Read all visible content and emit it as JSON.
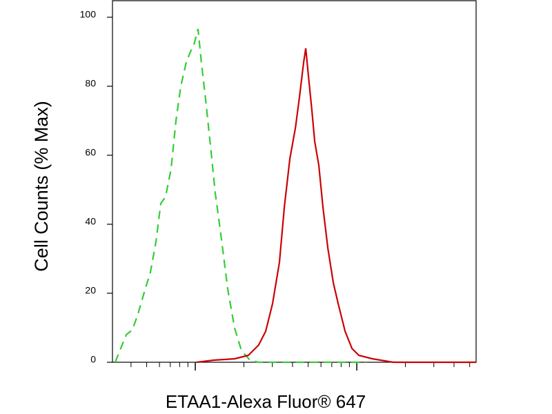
{
  "chart_data": {
    "type": "line",
    "xlabel": "ETAA1-Alexa Fluor® 647",
    "ylabel": "Cell Counts (% Max)",
    "xscale": "log",
    "xlim": [
      0.307,
      54.8
    ],
    "xticks": [
      1,
      10
    ],
    "xminor_ticks": [
      0.4,
      0.5,
      0.6,
      0.7,
      0.8,
      0.9,
      2,
      3,
      4,
      5,
      6,
      7,
      8,
      9,
      20,
      30,
      40,
      50
    ],
    "ylim": [
      0,
      100
    ],
    "yticks": [
      0,
      20,
      40,
      60,
      80,
      100
    ],
    "series": [
      {
        "color": "#33cc33",
        "dash": true,
        "x": [
          0.319,
          0.345,
          0.374,
          0.408,
          0.442,
          0.488,
          0.527,
          0.571,
          0.611,
          0.655,
          0.708,
          0.759,
          0.813,
          0.88,
          0.933,
          0.98,
          1.04,
          1.09,
          1.16,
          1.24,
          1.33,
          1.44,
          1.59,
          1.75,
          1.93,
          2.18,
          2.47,
          11.4
        ],
        "values": [
          0,
          4,
          8,
          9.4,
          14,
          21,
          26,
          35,
          46,
          48,
          56,
          70,
          80,
          87,
          90,
          92,
          96.6,
          87,
          76,
          63,
          49,
          37,
          21,
          10,
          3.4,
          0.6,
          0,
          0
        ]
      },
      {
        "color": "#cc0000",
        "dash": false,
        "x": [
          1.02,
          1.3,
          1.75,
          2.13,
          2.47,
          2.73,
          3.01,
          3.32,
          3.56,
          3.85,
          4.17,
          4.42,
          4.69,
          4.83,
          5.02,
          5.27,
          5.49,
          5.82,
          6.17,
          6.62,
          7.16,
          7.67,
          8.46,
          9.34,
          10.3,
          12.5,
          16.8,
          54.8
        ],
        "values": [
          0,
          0.6,
          1,
          2,
          5,
          9,
          17,
          29,
          45,
          59,
          68,
          77,
          87,
          91,
          83,
          73,
          64,
          57,
          45,
          33,
          23,
          17,
          9,
          4,
          2,
          1,
          0,
          0
        ]
      }
    ]
  }
}
